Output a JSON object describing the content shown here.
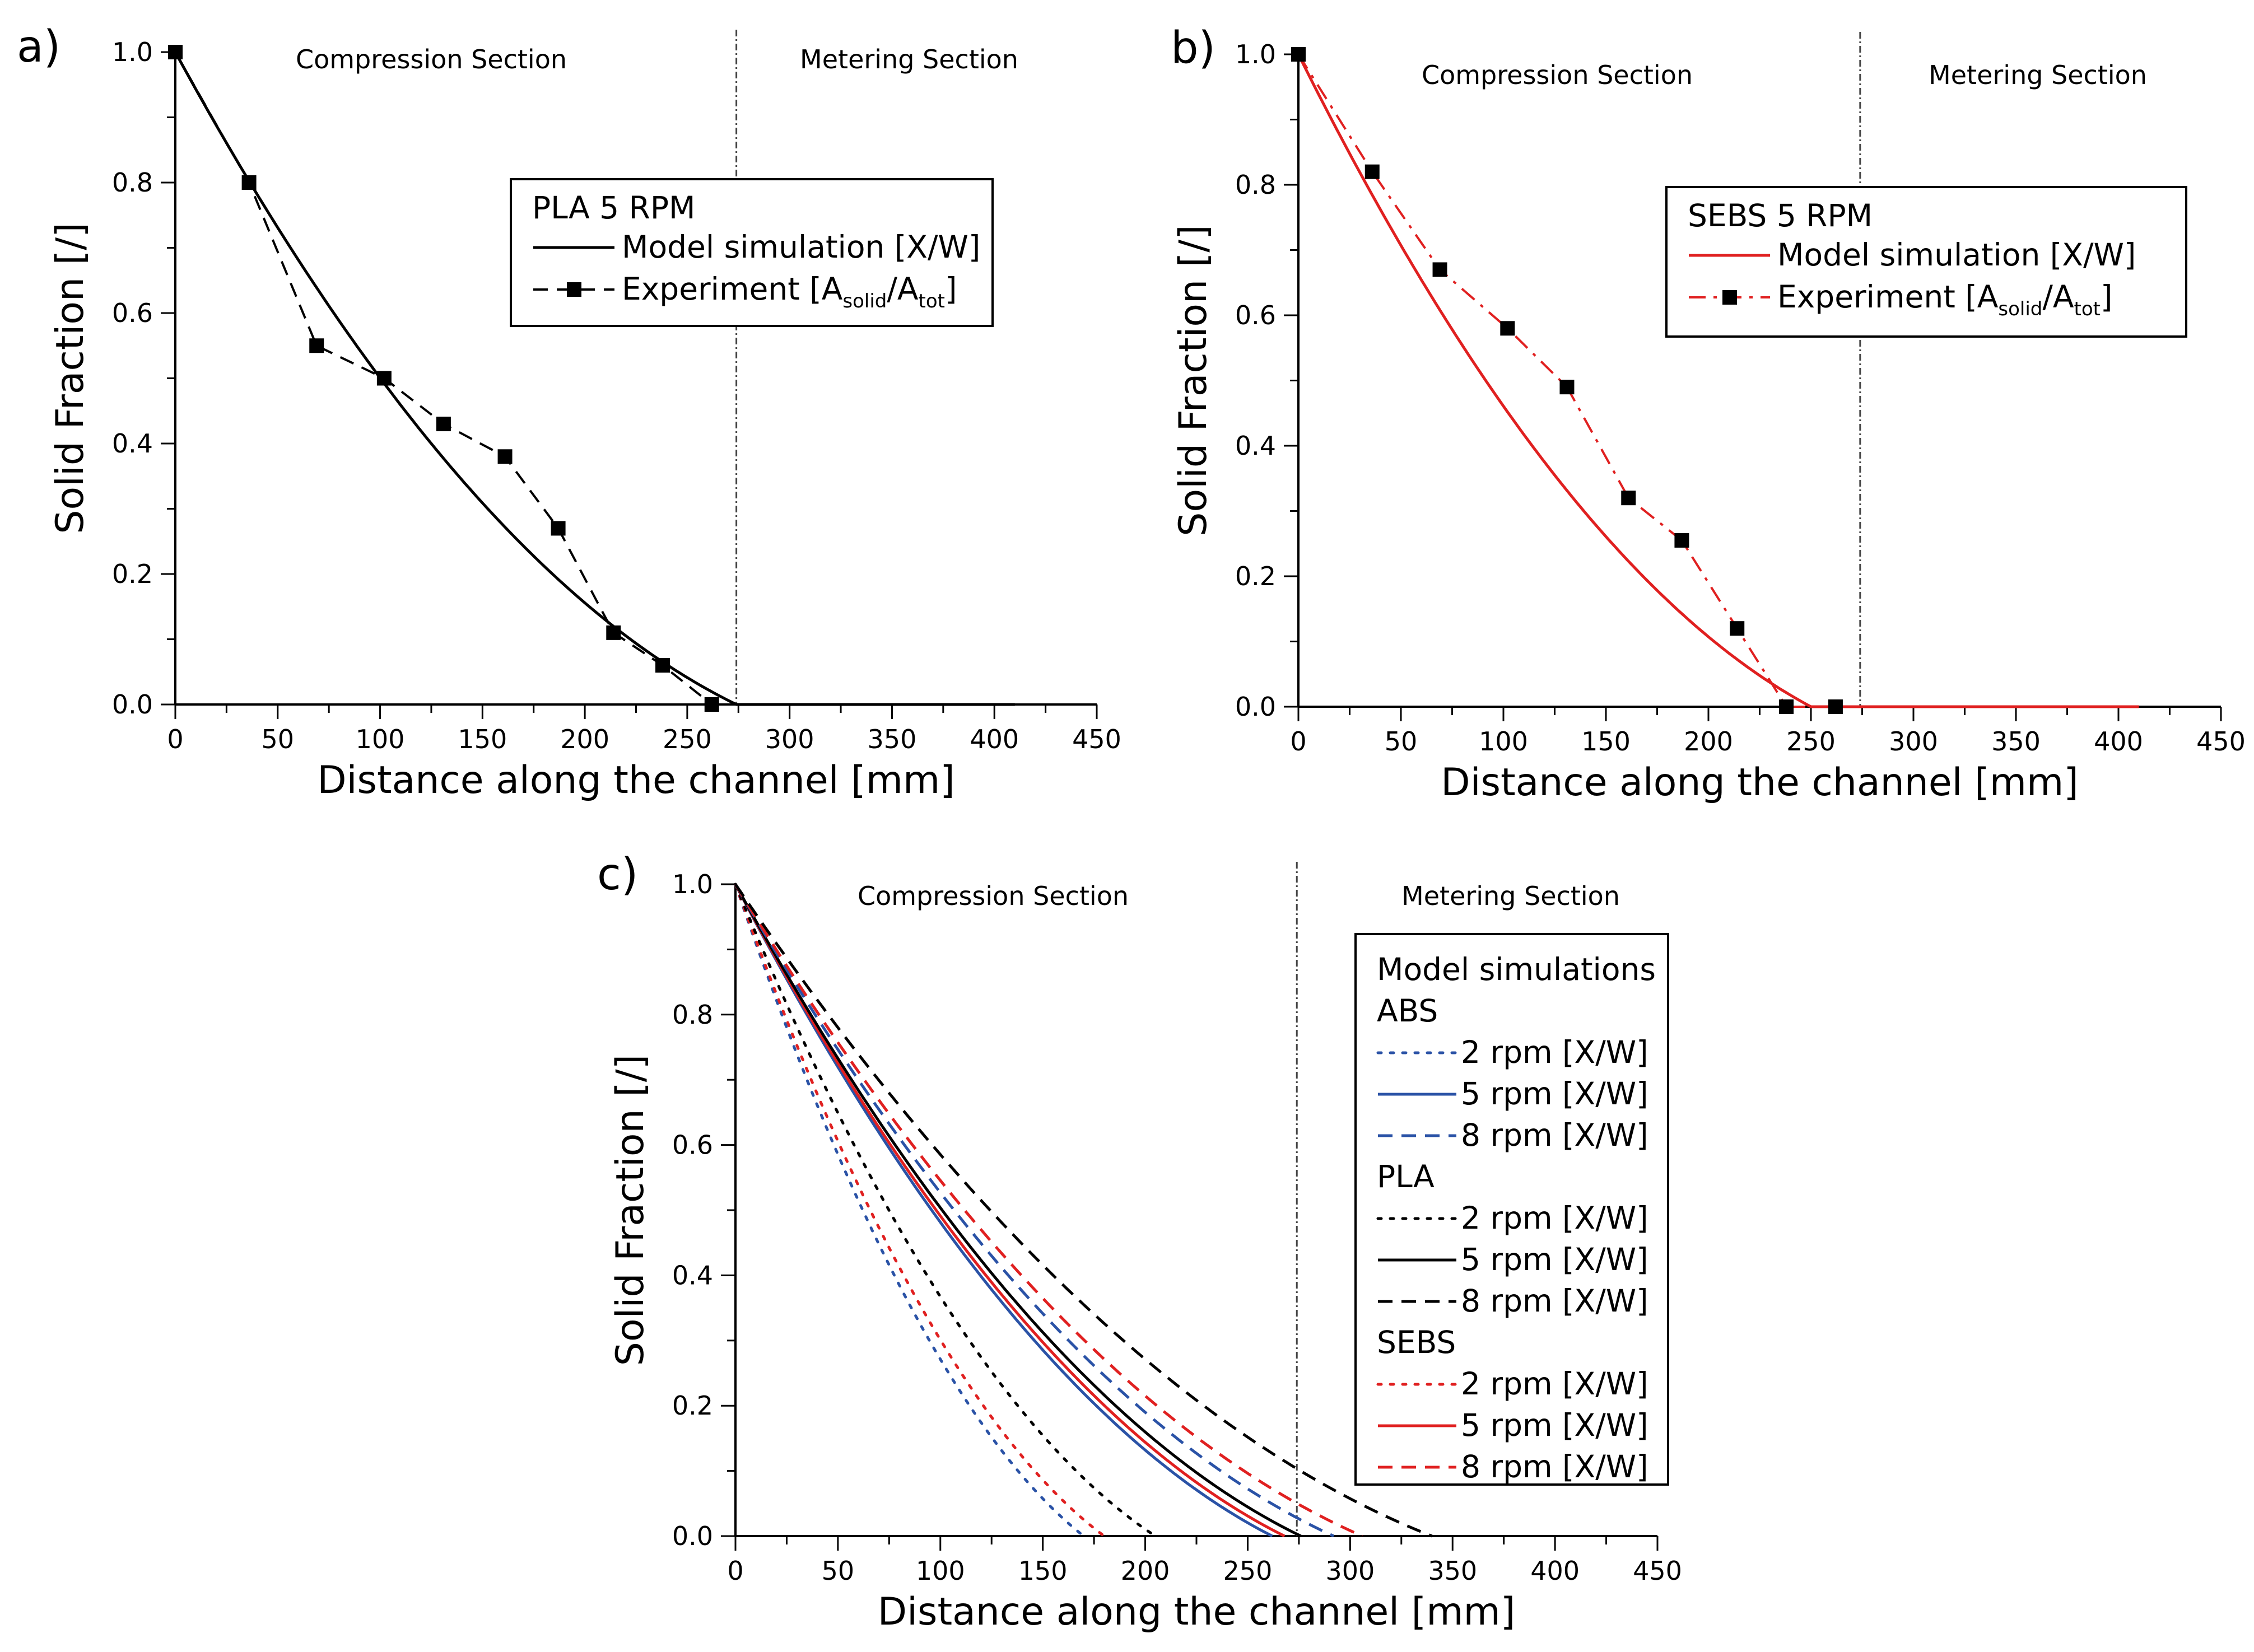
{
  "colors": {
    "black": "#000000",
    "red": "#e02020",
    "blue": "#2a52a6",
    "sep": "#444444"
  },
  "chart_data": [
    {
      "panel": "a)",
      "type": "line",
      "xlabel": "Distance along the channel [mm]",
      "ylabel": "Solid Fraction [/]",
      "xlim": [
        0,
        450
      ],
      "ylim": [
        0,
        1.0
      ],
      "xticks": [
        "0",
        "50",
        "100",
        "150",
        "200",
        "250",
        "300",
        "350",
        "400",
        "450"
      ],
      "yticks": [
        "0.0",
        "0.2",
        "0.4",
        "0.6",
        "0.8",
        "1.0"
      ],
      "separator_x": 274,
      "section_labels": {
        "left": "Compression Section",
        "right": "Metering Section"
      },
      "legend": {
        "title": "PLA 5 RPM",
        "model": "Model simulation [X/W]",
        "exp_prefix": "Experiment [A",
        "exp_sub1": "solid",
        "exp_mid": "/A",
        "exp_sub2": "tot",
        "exp_suffix": "]"
      },
      "series": [
        {
          "name": "Model simulation [X/W]",
          "color": "#000000",
          "style": "solid",
          "x_end": 274,
          "tail_to": 410
        },
        {
          "name": "Experiment [Asolid/Atot]",
          "color": "#000000",
          "style": "dash",
          "markers": true,
          "x": [
            0,
            36,
            69,
            102,
            131,
            161,
            187,
            214,
            238,
            262
          ],
          "y": [
            1.0,
            0.8,
            0.55,
            0.5,
            0.43,
            0.38,
            0.27,
            0.11,
            0.06,
            0.0
          ]
        }
      ]
    },
    {
      "panel": "b)",
      "type": "line",
      "xlabel": "Distance along the channel [mm]",
      "ylabel": "Solid Fraction [/]",
      "xlim": [
        0,
        450
      ],
      "ylim": [
        0,
        1.0
      ],
      "xticks": [
        "0",
        "50",
        "100",
        "150",
        "200",
        "250",
        "300",
        "350",
        "400",
        "450"
      ],
      "yticks": [
        "0.0",
        "0.2",
        "0.4",
        "0.6",
        "0.8",
        "1.0"
      ],
      "separator_x": 274,
      "section_labels": {
        "left": "Compression Section",
        "right": "Metering Section"
      },
      "legend": {
        "title": "SEBS 5 RPM",
        "model": "Model simulation [X/W]",
        "exp_prefix": "Experiment [A",
        "exp_sub1": "solid",
        "exp_mid": "/A",
        "exp_sub2": "tot",
        "exp_suffix": "]"
      },
      "series": [
        {
          "name": "Model simulation [X/W]",
          "color": "#e02020",
          "style": "solid",
          "x_end": 250,
          "tail_to": 410
        },
        {
          "name": "Experiment [Asolid/Atot]",
          "color": "#e02020",
          "style": "dashdot",
          "markers": true,
          "x": [
            0,
            36,
            69,
            102,
            131,
            161,
            187,
            214,
            238,
            262
          ],
          "y": [
            1.0,
            0.82,
            0.67,
            0.58,
            0.49,
            0.32,
            0.255,
            0.12,
            0.0,
            0.0
          ]
        }
      ]
    },
    {
      "panel": "c)",
      "type": "line",
      "xlabel": "Distance along the channel [mm]",
      "ylabel": "Solid Fraction [/]",
      "xlim": [
        0,
        450
      ],
      "ylim": [
        0,
        1.0
      ],
      "xticks": [
        "0",
        "50",
        "100",
        "150",
        "200",
        "250",
        "300",
        "350",
        "400",
        "450"
      ],
      "yticks": [
        "0.0",
        "0.2",
        "0.4",
        "0.6",
        "0.8",
        "1.0"
      ],
      "separator_x": 274,
      "section_labels": {
        "left": "Compression Section",
        "right": "Metering Section"
      },
      "legend": {
        "title": "Model simulations",
        "groups": [
          {
            "name": "ABS",
            "items": [
              "2 rpm [X/W]",
              "5 rpm [X/W]",
              "8 rpm [X/W]"
            ]
          },
          {
            "name": "PLA",
            "items": [
              "2 rpm [X/W]",
              "5 rpm [X/W]",
              "8 rpm [X/W]"
            ]
          },
          {
            "name": "SEBS",
            "items": [
              "2 rpm [X/W]",
              "5 rpm [X/W]",
              "8 rpm [X/W]"
            ]
          }
        ]
      },
      "series": [
        {
          "name": "ABS 2 rpm [X/W]",
          "color": "#2a52a6",
          "style": "dot",
          "x_end": 170
        },
        {
          "name": "SEBS 2 rpm [X/W]",
          "color": "#e02020",
          "style": "dot",
          "x_end": 180
        },
        {
          "name": "PLA 2 rpm [X/W]",
          "color": "#000000",
          "style": "dot",
          "x_end": 205
        },
        {
          "name": "ABS 5 rpm [X/W]",
          "color": "#2a52a6",
          "style": "solid",
          "x_end": 262
        },
        {
          "name": "SEBS 5 rpm [X/W]",
          "color": "#e02020",
          "style": "solid",
          "x_end": 268
        },
        {
          "name": "PLA 5 rpm [X/W]",
          "color": "#000000",
          "style": "solid",
          "x_end": 276
        },
        {
          "name": "ABS 8 rpm [X/W]",
          "color": "#2a52a6",
          "style": "dash",
          "x_end": 292
        },
        {
          "name": "SEBS 8 rpm [X/W]",
          "color": "#e02020",
          "style": "dash",
          "x_end": 306
        },
        {
          "name": "PLA 8 rpm [X/W]",
          "color": "#000000",
          "style": "dash",
          "x_end": 340
        }
      ]
    }
  ]
}
